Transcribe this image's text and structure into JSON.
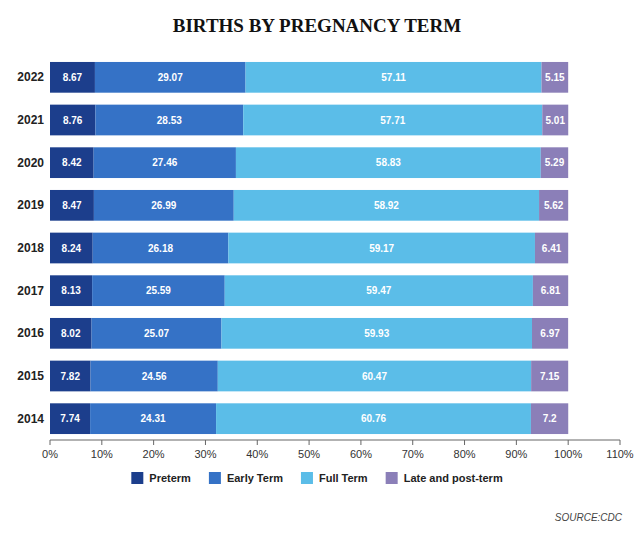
{
  "chart_data": {
    "type": "bar",
    "orientation": "horizontal",
    "stacked": true,
    "data_labels": true,
    "grid": false,
    "legend": "bottom",
    "title": "BIRTHS BY PREGNANCY TERM",
    "annotations": [
      "SOURCE:CDC"
    ],
    "categories": [
      "2022",
      "2021",
      "2020",
      "2019",
      "2018",
      "2017",
      "2016",
      "2015",
      "2014"
    ],
    "series": [
      {
        "name": "Preterm",
        "color": "#1c3e8c",
        "values": [
          8.67,
          8.76,
          8.42,
          8.47,
          8.24,
          8.13,
          8.02,
          7.82,
          7.74
        ]
      },
      {
        "name": "Early Term",
        "color": "#3572c6",
        "values": [
          29.07,
          28.53,
          27.46,
          26.99,
          26.18,
          25.59,
          25.07,
          24.56,
          24.31
        ]
      },
      {
        "name": "Full Term",
        "color": "#5bbde8",
        "values": [
          57.11,
          57.71,
          58.83,
          58.92,
          59.17,
          59.47,
          59.93,
          60.47,
          60.76
        ]
      },
      {
        "name": "Late and post-term",
        "color": "#8b7fb8",
        "values": [
          5.15,
          5.01,
          5.29,
          5.62,
          6.41,
          6.81,
          6.97,
          7.15,
          7.2
        ]
      }
    ],
    "xlim": [
      0,
      110
    ],
    "xticks": [
      {
        "value": 0,
        "label": "0%"
      },
      {
        "value": 10,
        "label": "10%"
      },
      {
        "value": 20,
        "label": "20%"
      },
      {
        "value": 30,
        "label": "30%"
      },
      {
        "value": 40,
        "label": "40%"
      },
      {
        "value": 50,
        "label": "50%"
      },
      {
        "value": 60,
        "label": "60%"
      },
      {
        "value": 70,
        "label": "70%"
      },
      {
        "value": 80,
        "label": "80%"
      },
      {
        "value": 90,
        "label": "90%"
      },
      {
        "value": 100,
        "label": "100%"
      },
      {
        "value": 110,
        "label": "110%"
      }
    ]
  }
}
